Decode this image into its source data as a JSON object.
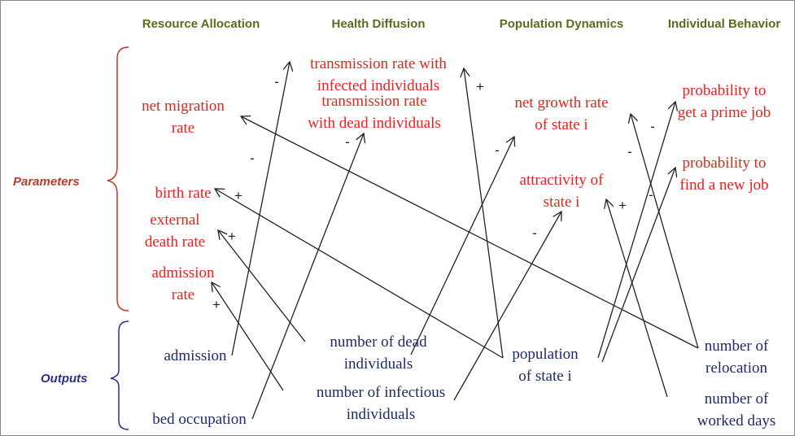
{
  "columns": [
    "Resource Allocation",
    "Health Diffusion",
    "Population Dynamics",
    "Individual Behavior"
  ],
  "groups": {
    "parameters": "Parameters",
    "outputs": "Outputs"
  },
  "parameters": [
    [
      "transmission rate with",
      "infected individuals"
    ],
    [
      "transmission rate",
      "with dead individuals"
    ],
    [
      "net migration",
      "rate"
    ],
    [
      "birth rate"
    ],
    [
      "external",
      "death rate"
    ],
    [
      "admission",
      "rate"
    ],
    [
      "net growth rate",
      "of state i"
    ],
    [
      "attractivity of",
      "state i"
    ],
    [
      "probability to",
      "get a prime job"
    ],
    [
      "probability to",
      "find a new job"
    ]
  ],
  "outputs": [
    [
      "admission"
    ],
    [
      "number of dead",
      "individuals"
    ],
    [
      "population",
      "of state i"
    ],
    [
      "number of",
      "relocation"
    ],
    [
      "bed occupation"
    ],
    [
      "number of infectious",
      "individuals"
    ],
    [
      "number of",
      "worked days"
    ]
  ],
  "edge_signs": [
    "-",
    "-",
    "+",
    "+",
    "-",
    "-",
    "+",
    "+",
    "-",
    "-",
    "-",
    "-",
    "+"
  ]
}
